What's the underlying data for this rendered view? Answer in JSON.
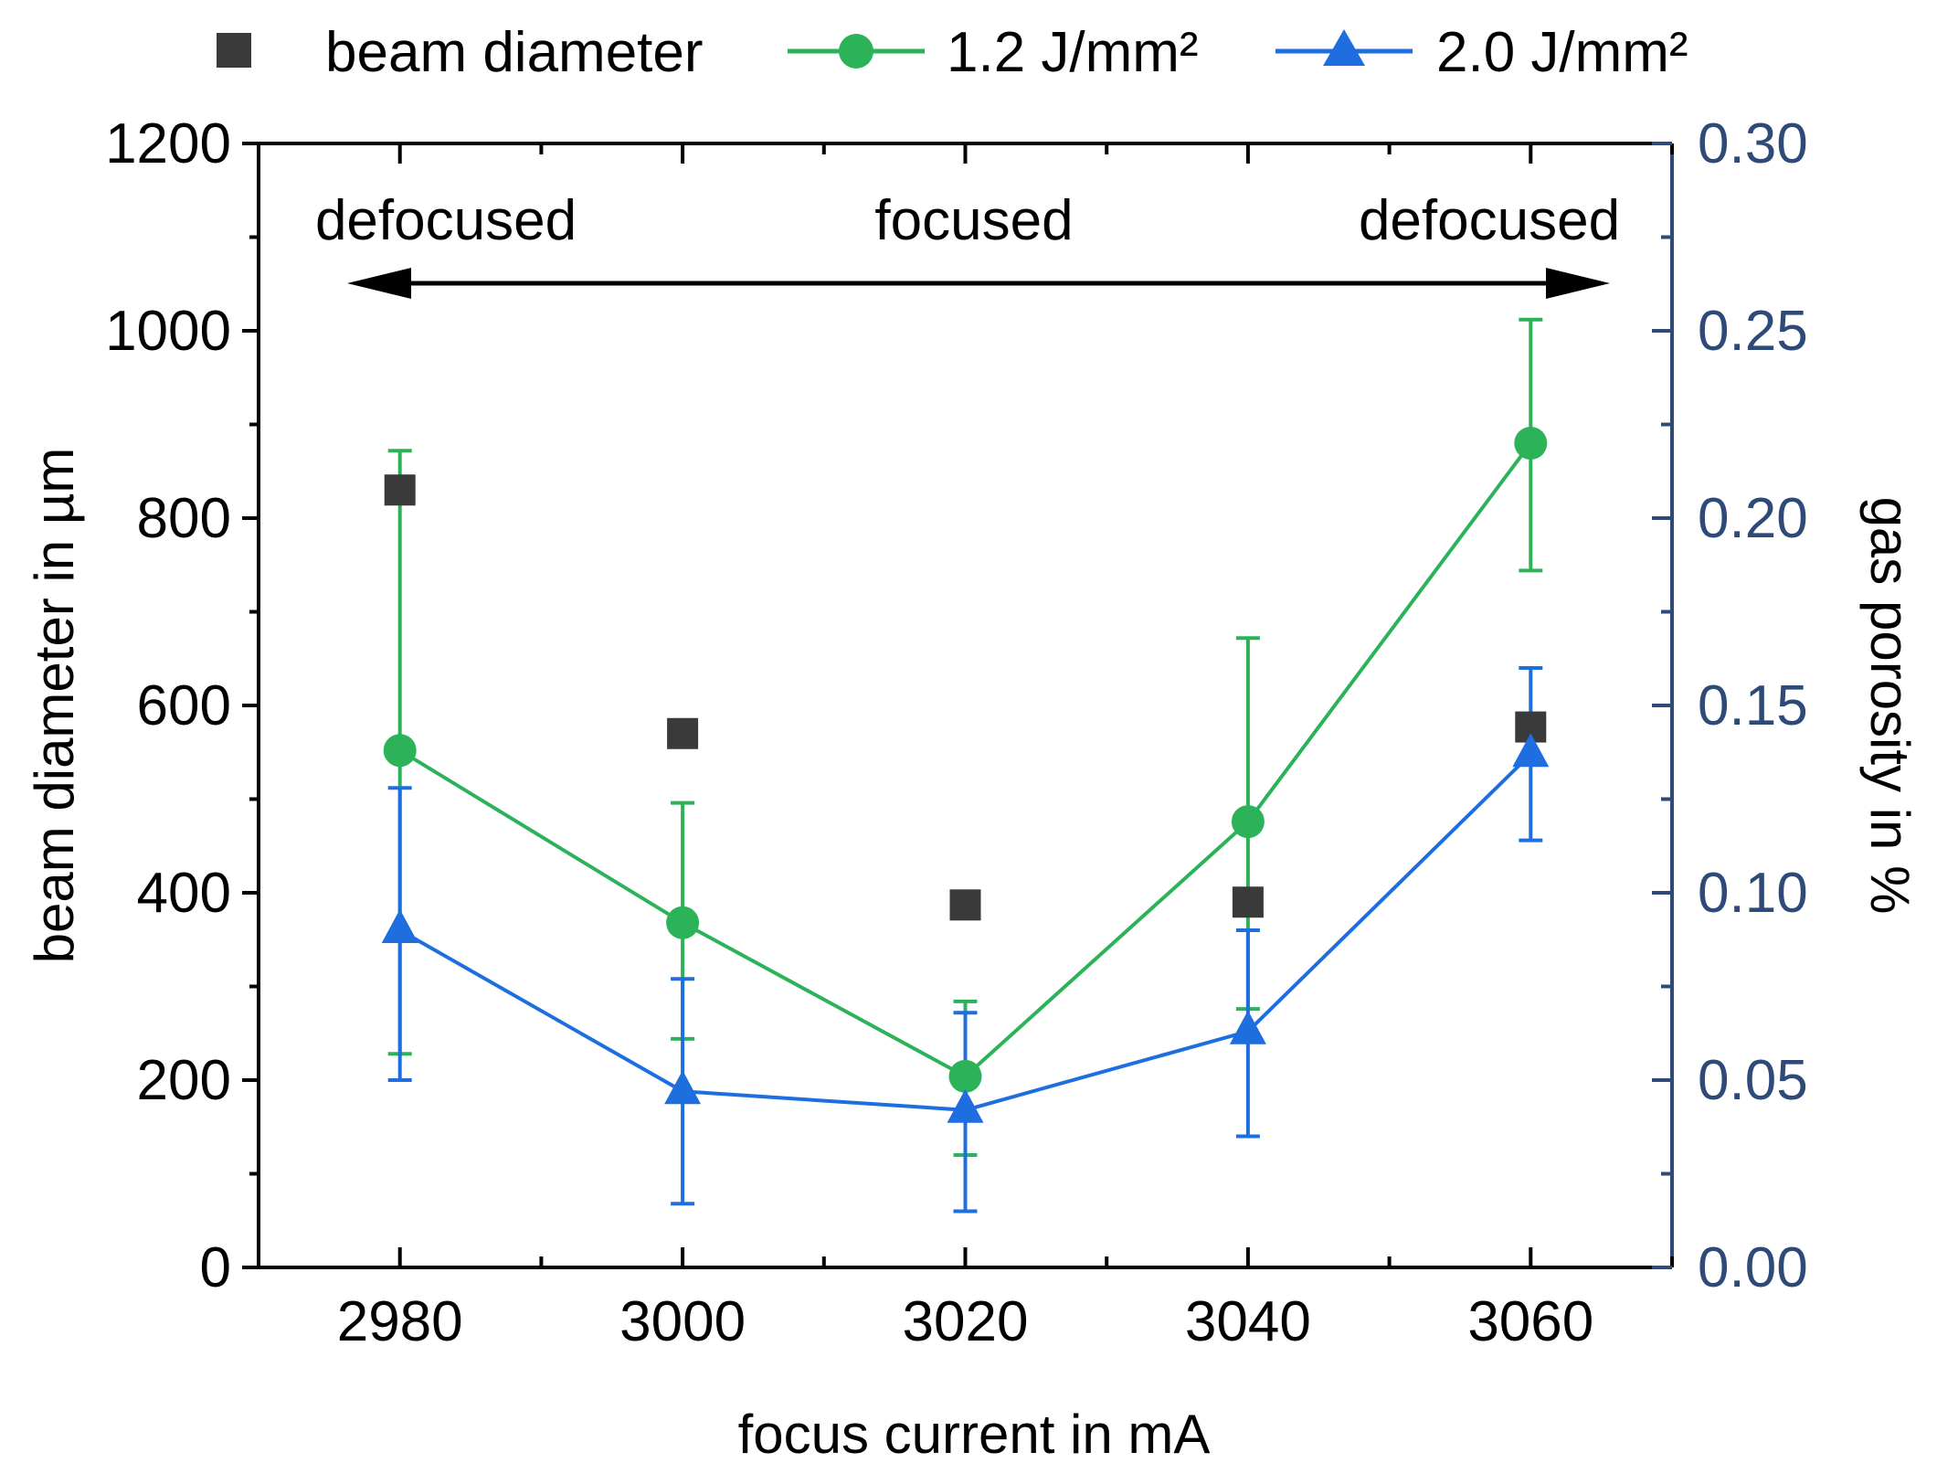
{
  "chart_data": {
    "type": "line",
    "x": [
      2980,
      3000,
      3020,
      3040,
      3060
    ],
    "xlabel": "focus current in mA",
    "ylabel_left": "beam diameter in µm",
    "ylabel_right": "gas porosity in %",
    "xlim": [
      2970,
      3070
    ],
    "ylim_left": [
      0,
      1200
    ],
    "ylim_right": [
      0.0,
      0.3
    ],
    "xticks": [
      "2980",
      "3000",
      "3020",
      "3040",
      "3060"
    ],
    "yticks_left": [
      "0",
      "200",
      "400",
      "600",
      "800",
      "1000",
      "1200"
    ],
    "yticks_right": [
      "0.00",
      "0.05",
      "0.10",
      "0.15",
      "0.20",
      "0.25",
      "0.30"
    ],
    "series": [
      {
        "name": "beam diameter",
        "axis": "left",
        "marker": "square",
        "line": false,
        "color": "#3a3a3a",
        "values": [
          830,
          570,
          387,
          390,
          577
        ]
      },
      {
        "name": "1.2 J/mm²",
        "axis": "right",
        "marker": "circle",
        "line": true,
        "color": "#2cb35a",
        "values": [
          0.138,
          0.092,
          0.051,
          0.119,
          0.22
        ],
        "err_low": [
          0.057,
          0.061,
          0.03,
          0.069,
          0.186
        ],
        "err_high": [
          0.218,
          0.124,
          0.071,
          0.168,
          0.253
        ]
      },
      {
        "name": "2.0 J/mm²",
        "axis": "right",
        "marker": "triangle",
        "line": true,
        "color": "#1f6ee0",
        "values": [
          0.09,
          0.047,
          0.042,
          0.063,
          0.137
        ],
        "err_low": [
          0.05,
          0.017,
          0.015,
          0.035,
          0.114
        ],
        "err_high": [
          0.128,
          0.077,
          0.068,
          0.09,
          0.16
        ]
      }
    ],
    "annotations": [
      "defocused",
      "focused",
      "defocused"
    ],
    "legend_position": "top"
  },
  "colors": {
    "axis_left": "#000000",
    "axis_right": "#2e4a78",
    "arrow": "#000000"
  }
}
